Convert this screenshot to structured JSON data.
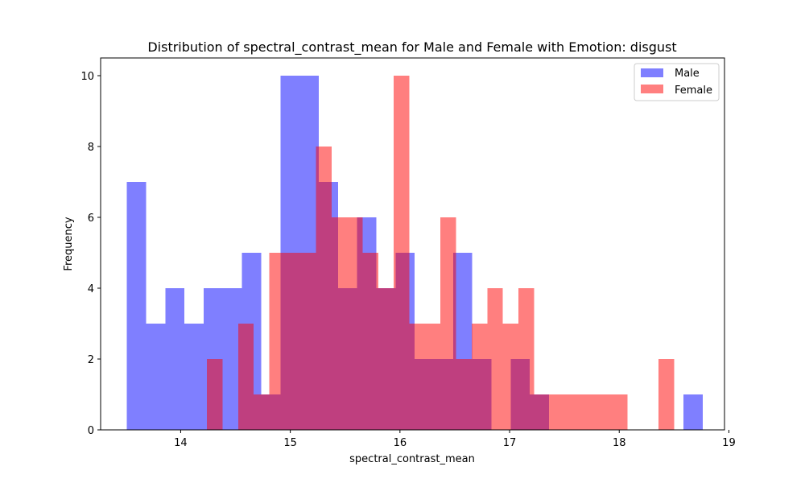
{
  "chart_data": {
    "type": "histogram",
    "title": "Distribution of spectral_contrast_mean for Male and Female with Emotion: disgust",
    "xlabel": "spectral_contrast_mean",
    "ylabel": "Frequency",
    "xlim": [
      13.27,
      18.96
    ],
    "ylim": [
      0,
      10.5
    ],
    "xticks": [
      14,
      15,
      16,
      17,
      18,
      19
    ],
    "yticks": [
      0,
      2,
      4,
      6,
      8,
      10
    ],
    "grid": false,
    "legend_position": "top-right",
    "series": [
      {
        "name": "Male",
        "color": "#0000ff",
        "opacity": 0.5,
        "bins": [
          {
            "x0": 13.51,
            "x1": 13.685,
            "count": 7
          },
          {
            "x0": 13.685,
            "x1": 13.86,
            "count": 3
          },
          {
            "x0": 13.86,
            "x1": 14.035,
            "count": 4
          },
          {
            "x0": 14.035,
            "x1": 14.21,
            "count": 3
          },
          {
            "x0": 14.21,
            "x1": 14.385,
            "count": 4
          },
          {
            "x0": 14.385,
            "x1": 14.56,
            "count": 4
          },
          {
            "x0": 14.56,
            "x1": 14.735,
            "count": 5
          },
          {
            "x0": 14.735,
            "x1": 14.91,
            "count": 1
          },
          {
            "x0": 14.91,
            "x1": 15.085,
            "count": 10
          },
          {
            "x0": 15.085,
            "x1": 15.26,
            "count": 10
          },
          {
            "x0": 15.26,
            "x1": 15.435,
            "count": 7
          },
          {
            "x0": 15.435,
            "x1": 15.61,
            "count": 4
          },
          {
            "x0": 15.61,
            "x1": 15.785,
            "count": 6
          },
          {
            "x0": 15.785,
            "x1": 15.96,
            "count": 4
          },
          {
            "x0": 15.96,
            "x1": 16.135,
            "count": 5
          },
          {
            "x0": 16.135,
            "x1": 16.31,
            "count": 2
          },
          {
            "x0": 16.31,
            "x1": 16.485,
            "count": 2
          },
          {
            "x0": 16.485,
            "x1": 16.66,
            "count": 5
          },
          {
            "x0": 16.66,
            "x1": 16.835,
            "count": 2
          },
          {
            "x0": 16.835,
            "x1": 17.01,
            "count": 0
          },
          {
            "x0": 17.01,
            "x1": 17.185,
            "count": 2
          },
          {
            "x0": 17.185,
            "x1": 17.36,
            "count": 1
          },
          {
            "x0": 17.36,
            "x1": 17.535,
            "count": 0
          },
          {
            "x0": 17.535,
            "x1": 17.71,
            "count": 0
          },
          {
            "x0": 17.71,
            "x1": 17.885,
            "count": 0
          },
          {
            "x0": 17.885,
            "x1": 18.06,
            "count": 0
          },
          {
            "x0": 18.06,
            "x1": 18.235,
            "count": 0
          },
          {
            "x0": 18.235,
            "x1": 18.41,
            "count": 0
          },
          {
            "x0": 18.41,
            "x1": 18.585,
            "count": 0
          },
          {
            "x0": 18.585,
            "x1": 18.76,
            "count": 1
          }
        ]
      },
      {
        "name": "Female",
        "color": "#ff0000",
        "opacity": 0.5,
        "bins": [
          {
            "x0": 14.24,
            "x1": 14.382,
            "count": 2
          },
          {
            "x0": 14.382,
            "x1": 14.524,
            "count": 0
          },
          {
            "x0": 14.524,
            "x1": 14.666,
            "count": 3
          },
          {
            "x0": 14.666,
            "x1": 14.808,
            "count": 1
          },
          {
            "x0": 14.808,
            "x1": 14.95,
            "count": 5
          },
          {
            "x0": 14.95,
            "x1": 15.092,
            "count": 5
          },
          {
            "x0": 15.092,
            "x1": 15.234,
            "count": 5
          },
          {
            "x0": 15.234,
            "x1": 15.376,
            "count": 8
          },
          {
            "x0": 15.376,
            "x1": 15.518,
            "count": 6
          },
          {
            "x0": 15.518,
            "x1": 15.66,
            "count": 6
          },
          {
            "x0": 15.66,
            "x1": 15.802,
            "count": 5
          },
          {
            "x0": 15.802,
            "x1": 15.944,
            "count": 4
          },
          {
            "x0": 15.944,
            "x1": 16.086,
            "count": 10
          },
          {
            "x0": 16.086,
            "x1": 16.228,
            "count": 3
          },
          {
            "x0": 16.228,
            "x1": 16.37,
            "count": 3
          },
          {
            "x0": 16.37,
            "x1": 16.512,
            "count": 6
          },
          {
            "x0": 16.512,
            "x1": 16.654,
            "count": 2
          },
          {
            "x0": 16.654,
            "x1": 16.796,
            "count": 3
          },
          {
            "x0": 16.796,
            "x1": 16.938,
            "count": 4
          },
          {
            "x0": 16.938,
            "x1": 17.08,
            "count": 3
          },
          {
            "x0": 17.08,
            "x1": 17.222,
            "count": 4
          },
          {
            "x0": 17.222,
            "x1": 17.364,
            "count": 1
          },
          {
            "x0": 17.364,
            "x1": 17.506,
            "count": 1
          },
          {
            "x0": 17.506,
            "x1": 17.648,
            "count": 1
          },
          {
            "x0": 17.648,
            "x1": 17.79,
            "count": 1
          },
          {
            "x0": 17.79,
            "x1": 17.932,
            "count": 1
          },
          {
            "x0": 17.932,
            "x1": 18.074,
            "count": 1
          },
          {
            "x0": 18.074,
            "x1": 18.216,
            "count": 0
          },
          {
            "x0": 18.216,
            "x1": 18.358,
            "count": 0
          },
          {
            "x0": 18.358,
            "x1": 18.5,
            "count": 2
          }
        ]
      }
    ]
  }
}
